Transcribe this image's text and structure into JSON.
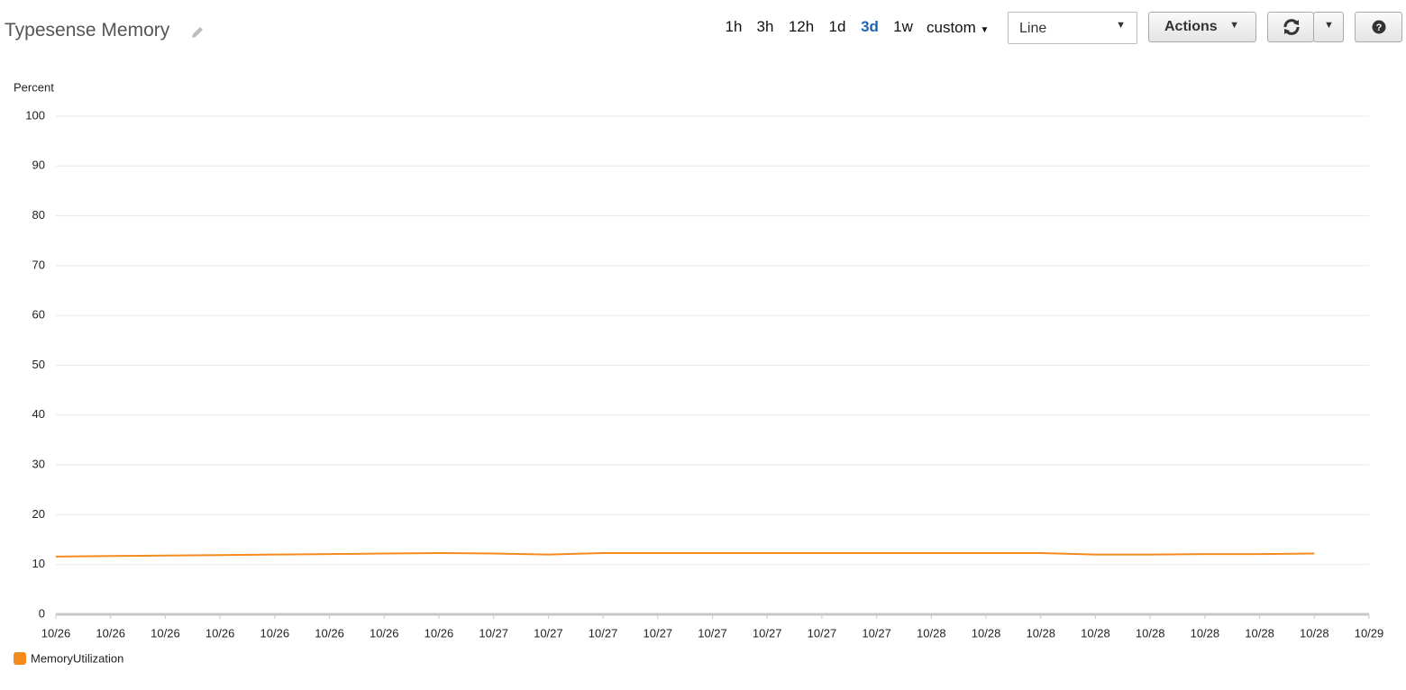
{
  "toolbar": {
    "title": "Typesense Memory",
    "ranges": [
      "1h",
      "3h",
      "12h",
      "1d",
      "3d",
      "1w"
    ],
    "custom": "custom",
    "view": "Line",
    "actions": "Actions"
  },
  "chart_data": {
    "type": "line",
    "y_label": "Percent",
    "categories": [
      "10/26",
      "10/26",
      "10/26",
      "10/26",
      "10/26",
      "10/26",
      "10/26",
      "10/26",
      "10/27",
      "10/27",
      "10/27",
      "10/27",
      "10/27",
      "10/27",
      "10/27",
      "10/27",
      "10/28",
      "10/28",
      "10/28",
      "10/28",
      "10/28",
      "10/28",
      "10/28",
      "10/28",
      "10/29"
    ],
    "series": [
      {
        "name": "MemoryUtilization",
        "color": "#f58a1f",
        "values": [
          11.6,
          11.7,
          11.8,
          11.9,
          12.0,
          12.1,
          12.2,
          12.3,
          12.2,
          12.0,
          12.3,
          12.3,
          12.3,
          12.3,
          12.3,
          12.3,
          12.3,
          12.3,
          12.3,
          12.0,
          12.0,
          12.1,
          12.1,
          12.2,
          null
        ]
      }
    ],
    "ylim": [
      0,
      100
    ],
    "yticks": [
      0,
      10,
      20,
      30,
      40,
      50,
      60,
      70,
      80,
      90,
      100
    ],
    "grid": true
  }
}
